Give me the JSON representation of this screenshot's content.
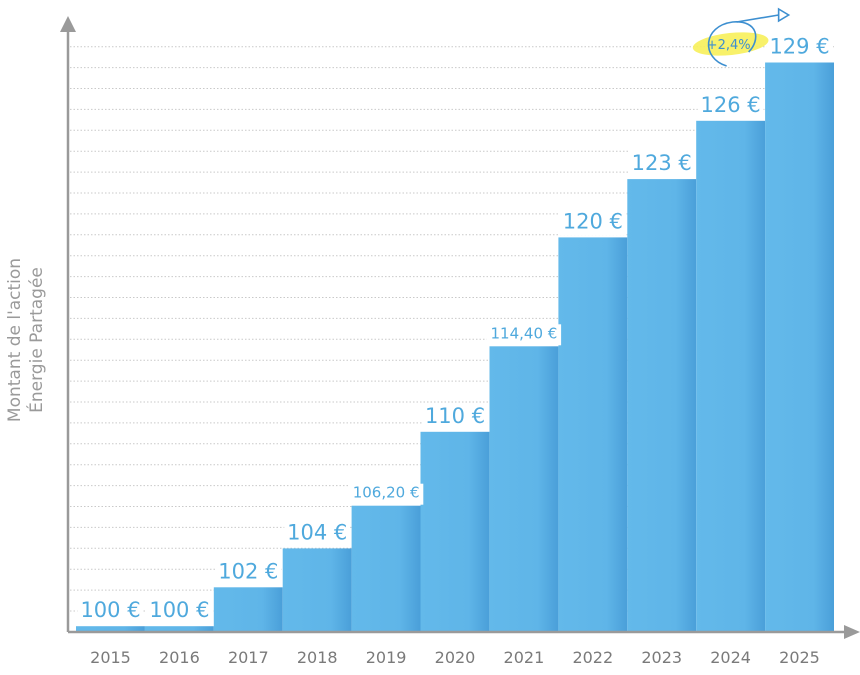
{
  "chart_data": {
    "type": "bar",
    "categories": [
      "2015",
      "2016",
      "2017",
      "2018",
      "2019",
      "2020",
      "2021",
      "2022",
      "2023",
      "2024",
      "2025"
    ],
    "values": [
      100,
      100,
      102,
      104,
      106.2,
      110,
      114.4,
      120,
      123,
      126,
      129
    ],
    "value_labels": [
      "100 €",
      "100 €",
      "102 €",
      "104 €",
      "106,20 €",
      "110 €",
      "114,40 €",
      "120 €",
      "123 €",
      "126 €",
      "129 €"
    ],
    "ylabel_lines": [
      "Montant de l'action",
      "Énergie Partagée"
    ],
    "xlabel": "",
    "title": "",
    "ylim": [
      99.7,
      129.9
    ],
    "grid": true,
    "annotation": {
      "text": "+2,4%",
      "between": [
        "2024",
        "2025"
      ]
    },
    "colors": {
      "bar": "#63b9ea",
      "bar_dark": "#4a9fd9",
      "label": "#4fa9dd",
      "axis": "#9a9a9a",
      "grid": "#c9c9c9",
      "highlight": "#f7f05a",
      "tick": "#7a7a7a"
    }
  }
}
